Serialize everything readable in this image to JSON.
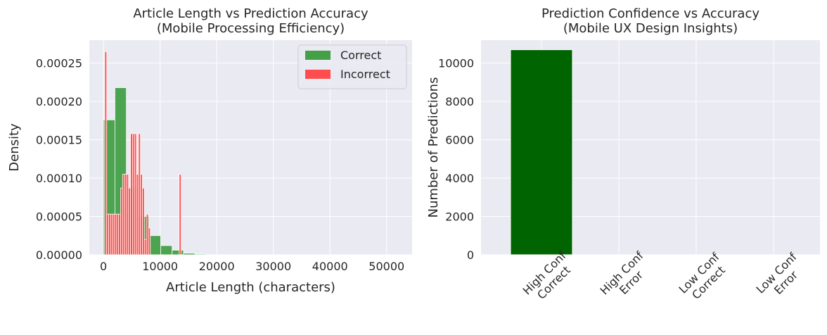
{
  "colors": {
    "panel_bg": "#eaeaf2",
    "grid": "#ffffff",
    "correct": "#43a047",
    "incorrect": "#ff4d4d",
    "bar": "#006400"
  },
  "chart_data": [
    {
      "type": "bar",
      "title": "Article Length vs Prediction Accuracy\n(Mobile Processing Efficiency)",
      "xlabel": "Article Length (characters)",
      "ylabel": "Density",
      "xlim": [
        -2500,
        54500
      ],
      "ylim": [
        0,
        0.00028
      ],
      "xticks": [
        0,
        10000,
        20000,
        30000,
        40000,
        50000
      ],
      "xtick_labels": [
        "0",
        "10000",
        "20000",
        "30000",
        "40000",
        "50000"
      ],
      "yticks": [
        0,
        5e-05,
        0.0001,
        0.00015,
        0.0002,
        0.00025
      ],
      "ytick_labels": [
        "0.00000",
        "0.00005",
        "0.00010",
        "0.00015",
        "0.00020",
        "0.00025"
      ],
      "legend": "top-right",
      "grid": true,
      "series": [
        {
          "name": "Correct",
          "color": "#43a047",
          "x": [
            1010,
            3030,
            5050,
            7070,
            9090,
            11110,
            13130,
            15150,
            17170
          ],
          "bin_width": 2020,
          "values": [
            0.000176,
            0.000218,
            8.8e-05,
            5e-05,
            2.5e-05,
            1.2e-05,
            6e-06,
            2e-06,
            1e-06
          ]
        },
        {
          "name": "Incorrect",
          "color": "#ff4d4d",
          "x": [
            400,
            750,
            1100,
            1450,
            1800,
            2150,
            2500,
            2850,
            3200,
            3550,
            3900,
            4250,
            4600,
            4950,
            5300,
            5650,
            6000,
            6350,
            6700,
            7050,
            7400,
            7750,
            8100,
            13550
          ],
          "bin_width": 350,
          "values": [
            0.000265,
            5.3e-05,
            5.3e-05,
            5.3e-05,
            5.3e-05,
            5.3e-05,
            5.3e-05,
            5.3e-05,
            8.7e-05,
            0.000105,
            0.000105,
            0.000105,
            8.7e-05,
            0.000158,
            0.000158,
            0.000158,
            0.000105,
            0.000158,
            0.000105,
            8.7e-05,
            2e-05,
            5.3e-05,
            3.5e-05,
            0.000105
          ]
        }
      ]
    },
    {
      "type": "bar",
      "title": "Prediction Confidence vs Accuracy\n(Mobile UX Design Insights)",
      "xlabel": "",
      "ylabel": "Number of Predictions",
      "ylim": [
        0,
        11200
      ],
      "yticks": [
        0,
        2000,
        4000,
        6000,
        8000,
        10000
      ],
      "ytick_labels": [
        "0",
        "2000",
        "4000",
        "6000",
        "8000",
        "10000"
      ],
      "categories": [
        "High Conf\nCorrect",
        "High Conf\nError",
        "Low Conf\nCorrect",
        "Low Conf\nError"
      ],
      "values": [
        10700,
        0,
        0,
        0
      ],
      "color": "#006400",
      "grid": true
    }
  ]
}
